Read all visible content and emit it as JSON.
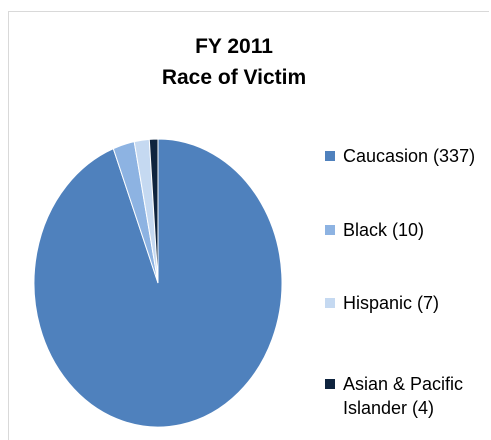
{
  "chart_data": {
    "type": "pie",
    "title": [
      "FY 2011",
      "Race of Victim"
    ],
    "slices": [
      {
        "label": "Caucasion (337)",
        "value": 337,
        "color": "#4f81bd"
      },
      {
        "label": "Black (10)",
        "value": 10,
        "color": "#8db3e2"
      },
      {
        "label": "Hispanic (7)",
        "value": 7,
        "color": "#c5d9f1"
      },
      {
        "label": "Asian & Pacific Islander (4)",
        "value": 4,
        "color": "#0f243e"
      }
    ],
    "legend_position": "right",
    "start_angle": "12 o'clock",
    "direction": "clockwise"
  }
}
